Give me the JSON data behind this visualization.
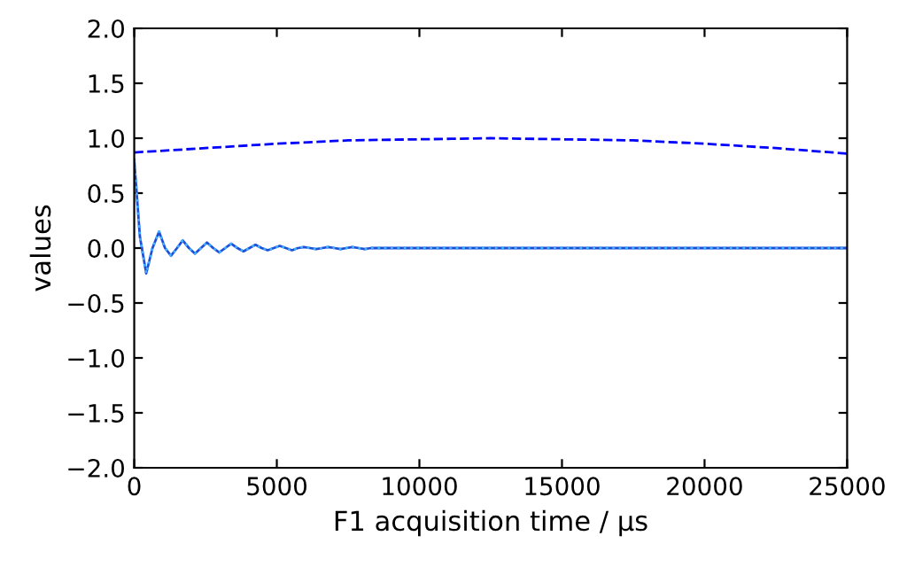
{
  "chart_data": {
    "type": "line",
    "xlabel": "F1 acquisition time / µs",
    "ylabel": "values",
    "xlim": [
      0,
      25000
    ],
    "ylim": [
      -2,
      2
    ],
    "xticks": [
      0,
      5000,
      10000,
      15000,
      20000,
      25000
    ],
    "yticks": [
      {
        "value": -2,
        "label": "−2.0"
      },
      {
        "value": -1.5,
        "label": "−1.5"
      },
      {
        "value": -1,
        "label": "−1.0"
      },
      {
        "value": -0.5,
        "label": "−0.5"
      },
      {
        "value": 0,
        "label": "0.0"
      },
      {
        "value": 0.5,
        "label": "0.5"
      },
      {
        "value": 1,
        "label": "1.0"
      },
      {
        "value": 1.5,
        "label": "1.5"
      },
      {
        "value": 2,
        "label": "2.0"
      }
    ],
    "grid": false,
    "marker": "none",
    "series": [
      {
        "color": "#0000ff",
        "line_style": "dashed",
        "x": [
          0,
          2500,
          5000,
          7500,
          10000,
          12500,
          15000,
          17500,
          20000,
          22500,
          25000
        ],
        "values": [
          0.87,
          0.91,
          0.95,
          0.98,
          0.99,
          1.0,
          0.99,
          0.98,
          0.95,
          0.91,
          0.86
        ]
      },
      {
        "color": "#1f4fd8",
        "line_style": "solid",
        "x": [
          0,
          100,
          200,
          420,
          640,
          870,
          1080,
          1290,
          1500,
          1700,
          1920,
          2130,
          2340,
          2550,
          2770,
          2980,
          3190,
          3400,
          3620,
          3830,
          4040,
          4250,
          4470,
          4680,
          4890,
          5100,
          5320,
          5530,
          5740,
          5950,
          6170,
          6380,
          6590,
          6800,
          7020,
          7230,
          7440,
          7650,
          7870,
          8080,
          8300,
          9000,
          12000,
          16000,
          20000,
          25000
        ],
        "values": [
          0.8,
          0.45,
          0.1,
          -0.23,
          0,
          0.15,
          0,
          -0.07,
          0,
          0.07,
          0,
          -0.05,
          0,
          0.05,
          0,
          -0.04,
          0,
          0.04,
          0,
          -0.03,
          0,
          0.03,
          0,
          -0.02,
          0,
          0.02,
          0,
          -0.02,
          0,
          0.01,
          0,
          -0.01,
          0,
          0.01,
          0,
          -0.01,
          0,
          0.01,
          0,
          -0.01,
          0,
          0,
          0,
          0,
          0,
          0
        ]
      },
      {
        "color": "#40b0ff",
        "line_style": "dotted",
        "x": [
          0,
          100,
          200,
          420,
          640,
          870,
          1080,
          1290,
          1500,
          1700,
          1920,
          2130,
          2340,
          2550,
          2770,
          2980,
          3190,
          3400,
          3620,
          3830,
          4040,
          4250,
          4470,
          4680,
          4890,
          5100,
          5320,
          5530,
          5740,
          5950,
          6170,
          6380,
          6590,
          6800,
          7020,
          7230,
          7440,
          7650,
          7870,
          8080,
          8300,
          9000,
          12000,
          16000,
          20000,
          25000
        ],
        "values": [
          0.8,
          0.45,
          0.1,
          -0.23,
          0,
          0.15,
          0,
          -0.07,
          0,
          0.07,
          0,
          -0.05,
          0,
          0.05,
          0,
          -0.04,
          0,
          0.04,
          0,
          -0.03,
          0,
          0.03,
          0,
          -0.02,
          0,
          0.02,
          0,
          -0.02,
          0,
          0.01,
          0,
          -0.01,
          0,
          0.01,
          0,
          -0.01,
          0,
          0.01,
          0,
          -0.01,
          0,
          0,
          0,
          0,
          0,
          0
        ]
      }
    ]
  }
}
